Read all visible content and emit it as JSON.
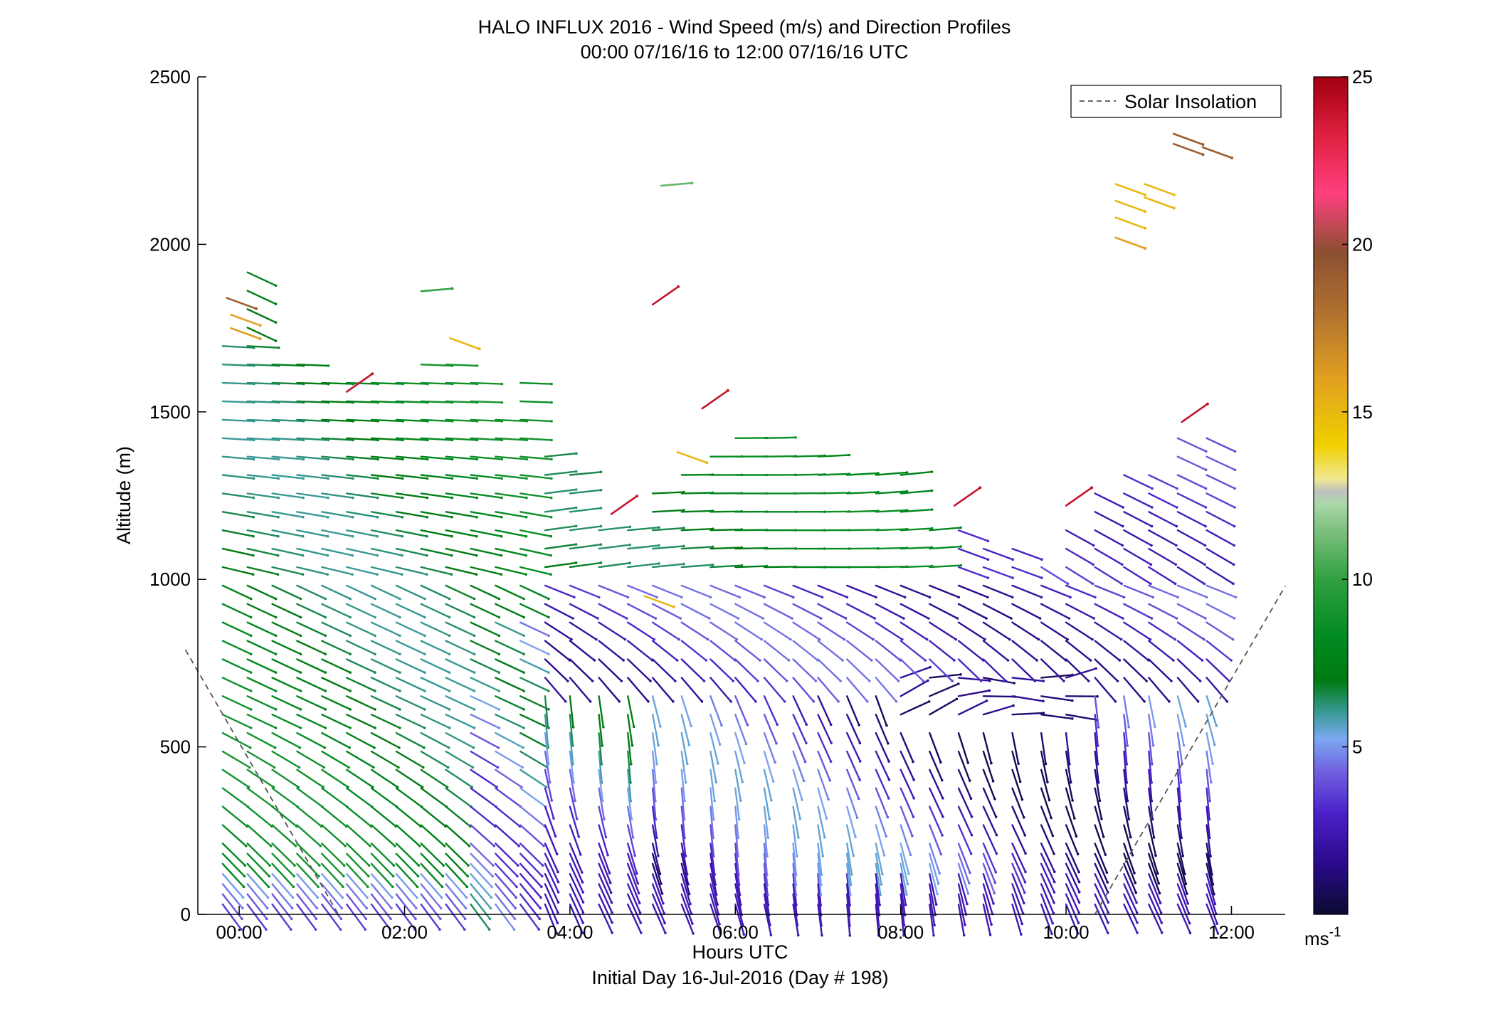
{
  "chart_data": {
    "type": "scatter",
    "subtype": "wind barb profile (arrows colored by wind speed)",
    "title": "HALO INFLUX 2016 - Wind Speed (m/s) and Direction Profiles",
    "subtitle": "00:00 07/16/16 to 12:00 07/16/16  UTC",
    "xlabel": "Hours UTC",
    "xlabel2": "Initial Day 16-Jul-2016 (Day # 198)",
    "ylabel": "Altitude (m)",
    "xlim": [
      -0.5,
      12.65
    ],
    "ylim": [
      0,
      2500
    ],
    "x_ticks": [
      0,
      2,
      4,
      6,
      8,
      10,
      12
    ],
    "x_tick_labels": [
      "00:00",
      "02:00",
      "04:00",
      "06:00",
      "08:00",
      "10:00",
      "12:00"
    ],
    "y_ticks": [
      0,
      500,
      1000,
      1500,
      2000,
      2500
    ],
    "y_tick_labels": [
      "0",
      "500",
      "1000",
      "1500",
      "2000",
      "2500"
    ],
    "colorbar": {
      "label": "ms",
      "label_superscript": "-1",
      "range": [
        0,
        25
      ],
      "ticks": [
        5,
        10,
        15,
        20,
        25
      ],
      "tick_labels": [
        "5",
        "10",
        "15",
        "20",
        "25"
      ],
      "colormap": "dark blue → purple → light blue → teal → green → light green → gray → yellow → orange → brown → pink → dark red"
    },
    "legend": {
      "placement": "top-right",
      "entries": [
        {
          "name": "Solar Insolation",
          "style": "dashed gray"
        }
      ]
    },
    "profile_times_hours": [
      -0.2,
      0.1,
      0.4,
      0.7,
      1.0,
      1.3,
      1.6,
      1.9,
      2.2,
      2.5,
      2.8,
      3.1,
      3.4,
      3.7,
      4.0,
      4.35,
      4.7,
      5.0,
      5.35,
      5.7,
      6.0,
      6.35,
      6.7,
      7.0,
      7.35,
      7.7,
      8.0,
      8.35,
      8.7,
      9.0,
      9.35,
      9.7,
      10.0,
      10.35,
      10.7,
      11.0,
      11.35,
      11.7
    ],
    "profile_top_altitude_m": [
      1700,
      1950,
      1650,
      1650,
      1630,
      1600,
      1620,
      1640,
      1660,
      1670,
      1600,
      1520,
      1640,
      1420,
      1320,
      1180,
      1200,
      1280,
      1360,
      1420,
      1450,
      1440,
      1410,
      1420,
      1340,
      1320,
      1320,
      1200,
      1150,
      1100,
      1100,
      1080,
      1150,
      1300,
      1330,
      1350,
      1440,
      1470
    ],
    "profile_level_spacing_m": 55,
    "regimes": [
      {
        "hours": [
          -0.2,
          3.6
        ],
        "altitude_m": [
          0,
          1700
        ],
        "speed_ms": [
          7,
          10
        ],
        "direction_deg": 300,
        "note": "northwesterly 7–10 m/s flow throughout column"
      },
      {
        "hours": [
          3.6,
          12
        ],
        "altitude_m": [
          1000,
          1500
        ],
        "speed_ms": [
          7,
          9
        ],
        "direction_deg": 275,
        "note": "westerly green flow aloft"
      },
      {
        "hours": [
          3.6,
          12
        ],
        "altitude_m": [
          0,
          1000
        ],
        "speed_ms": [
          1,
          5
        ],
        "direction_deg": 340,
        "note": "weak purple/blue winds below ~1000 m"
      },
      {
        "hours": [
          8.0,
          10.0
        ],
        "altitude_m": [
          600,
          750
        ],
        "speed_ms": [
          0.5,
          2
        ],
        "direction_deg": 90,
        "note": "near-calm layer"
      },
      {
        "hours": [
          9.6,
          11.8
        ],
        "altitude_m": [
          600,
          1450
        ],
        "speed_ms": [
          2,
          5
        ],
        "direction_deg": 315,
        "note": "weak northwesterly above the boundary layer"
      }
    ],
    "isolated_points": [
      {
        "x": -0.15,
        "y": 1840,
        "speed_ms": 19
      },
      {
        "x": -0.1,
        "y": 1790,
        "speed_ms": 16
      },
      {
        "x": -0.1,
        "y": 1750,
        "speed_ms": 16
      },
      {
        "x": 1.3,
        "y": 1560,
        "speed_ms": 24
      },
      {
        "x": 2.55,
        "y": 1720,
        "speed_ms": 15
      },
      {
        "x": 2.2,
        "y": 1860,
        "speed_ms": 10
      },
      {
        "x": 5.1,
        "y": 2175,
        "speed_ms": 11
      },
      {
        "x": 5.0,
        "y": 1820,
        "speed_ms": 24
      },
      {
        "x": 5.6,
        "y": 1510,
        "speed_ms": 24
      },
      {
        "x": 5.3,
        "y": 1380,
        "speed_ms": 15
      },
      {
        "x": 4.5,
        "y": 1195,
        "speed_ms": 24
      },
      {
        "x": 4.9,
        "y": 950,
        "speed_ms": 15
      },
      {
        "x": 8.65,
        "y": 1220,
        "speed_ms": 24
      },
      {
        "x": 10.0,
        "y": 1220,
        "speed_ms": 24
      },
      {
        "x": 10.6,
        "y": 2180,
        "speed_ms": 15
      },
      {
        "x": 10.6,
        "y": 2130,
        "speed_ms": 15
      },
      {
        "x": 10.6,
        "y": 2080,
        "speed_ms": 15
      },
      {
        "x": 10.6,
        "y": 2020,
        "speed_ms": 16
      },
      {
        "x": 10.95,
        "y": 2180,
        "speed_ms": 15
      },
      {
        "x": 10.95,
        "y": 2140,
        "speed_ms": 15
      },
      {
        "x": 11.3,
        "y": 2330,
        "speed_ms": 19
      },
      {
        "x": 11.3,
        "y": 2300,
        "speed_ms": 19
      },
      {
        "x": 11.65,
        "y": 2290,
        "speed_ms": 19
      },
      {
        "x": 11.4,
        "y": 1470,
        "speed_ms": 24
      }
    ],
    "solar_insolation_curve": {
      "x": [
        -0.65,
        1.2,
        10.35,
        12.65
      ],
      "y": [
        790,
        0,
        0,
        980
      ]
    }
  }
}
